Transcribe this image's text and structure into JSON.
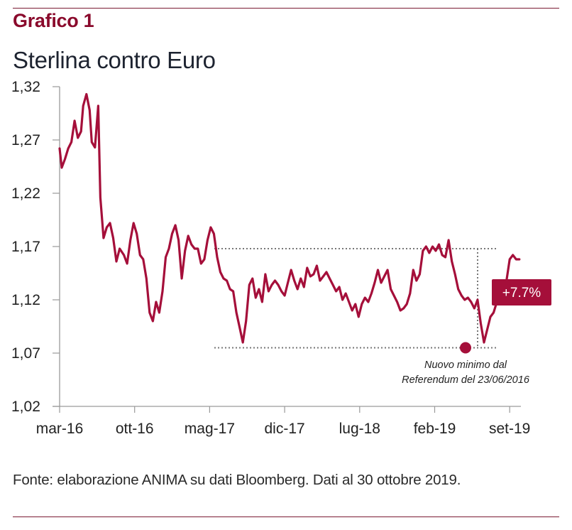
{
  "header": {
    "chart_label": "Grafico 1",
    "title": "Sterlina contro Euro"
  },
  "footer": {
    "source": "Fonte: elaborazione ANIMA su dati Bloomberg. Dati al 30 ottobre 2019."
  },
  "colors": {
    "accent": "#a50f3a",
    "label": "#8a0a2c",
    "rule": "#7a1a33",
    "axis": "#9a9a9a",
    "guide": "#777777"
  },
  "chart_data": {
    "type": "line",
    "title": "Sterlina contro Euro",
    "xlabel": "",
    "ylabel": "",
    "ylim": [
      1.02,
      1.32
    ],
    "yticks": [
      "1,32",
      "1,27",
      "1,22",
      "1,17",
      "1,12",
      "1,07",
      "1,02"
    ],
    "ytick_values": [
      1.32,
      1.27,
      1.22,
      1.17,
      1.12,
      1.07,
      1.02
    ],
    "xticks": [
      "mar-16",
      "ott-16",
      "mag-17",
      "dic-17",
      "lug-18",
      "feb-19",
      "set-19"
    ],
    "xtick_months": [
      0,
      7,
      14,
      21,
      28,
      35,
      42
    ],
    "xlim_months": [
      0,
      43
    ],
    "grid": false,
    "legend": "none",
    "series": [
      {
        "name": "GBP/EUR",
        "x_months": [
          0,
          0.2,
          0.5,
          0.8,
          1.1,
          1.4,
          1.7,
          2.0,
          2.2,
          2.5,
          2.8,
          3.0,
          3.3,
          3.6,
          3.8,
          4.1,
          4.4,
          4.7,
          5.0,
          5.3,
          5.6,
          6.0,
          6.3,
          6.6,
          6.9,
          7.2,
          7.5,
          7.8,
          8.1,
          8.4,
          8.7,
          9.0,
          9.3,
          9.6,
          9.9,
          10.2,
          10.5,
          10.8,
          11.1,
          11.4,
          11.7,
          12.0,
          12.3,
          12.6,
          12.9,
          13.2,
          13.5,
          13.8,
          14.1,
          14.4,
          14.7,
          15.0,
          15.3,
          15.6,
          15.9,
          16.2,
          16.5,
          16.8,
          17.1,
          17.4,
          17.7,
          18.0,
          18.3,
          18.6,
          18.9,
          19.2,
          19.5,
          19.8,
          20.1,
          20.4,
          20.7,
          21.0,
          21.3,
          21.6,
          21.9,
          22.2,
          22.5,
          22.8,
          23.1,
          23.4,
          23.7,
          24.0,
          24.3,
          24.6,
          24.9,
          25.2,
          25.5,
          25.8,
          26.1,
          26.4,
          26.7,
          27.0,
          27.3,
          27.6,
          27.9,
          28.2,
          28.5,
          28.8,
          29.1,
          29.4,
          29.7,
          30.0,
          30.3,
          30.6,
          30.9,
          31.2,
          31.5,
          31.8,
          32.1,
          32.4,
          32.7,
          33.0,
          33.3,
          33.6,
          33.9,
          34.2,
          34.5,
          34.8,
          35.1,
          35.4,
          35.7,
          36.0,
          36.3,
          36.6,
          36.9,
          37.2,
          37.5,
          37.8,
          38.1,
          38.4,
          38.7,
          39.0,
          39.3,
          39.6,
          39.9,
          40.2,
          40.5,
          40.8,
          41.1,
          41.4,
          41.7,
          42.0,
          42.3,
          42.6,
          42.9
        ],
        "values": [
          1.262,
          1.244,
          1.252,
          1.262,
          1.268,
          1.288,
          1.272,
          1.278,
          1.302,
          1.313,
          1.298,
          1.268,
          1.263,
          1.302,
          1.216,
          1.178,
          1.188,
          1.192,
          1.178,
          1.156,
          1.168,
          1.162,
          1.154,
          1.176,
          1.192,
          1.182,
          1.162,
          1.158,
          1.14,
          1.108,
          1.1,
          1.118,
          1.108,
          1.128,
          1.16,
          1.168,
          1.182,
          1.19,
          1.176,
          1.14,
          1.166,
          1.18,
          1.172,
          1.168,
          1.168,
          1.154,
          1.158,
          1.176,
          1.188,
          1.182,
          1.16,
          1.146,
          1.14,
          1.138,
          1.13,
          1.128,
          1.108,
          1.094,
          1.08,
          1.1,
          1.134,
          1.14,
          1.122,
          1.13,
          1.118,
          1.144,
          1.128,
          1.134,
          1.138,
          1.134,
          1.128,
          1.124,
          1.136,
          1.148,
          1.138,
          1.13,
          1.14,
          1.132,
          1.15,
          1.142,
          1.144,
          1.152,
          1.138,
          1.142,
          1.146,
          1.14,
          1.134,
          1.128,
          1.132,
          1.12,
          1.126,
          1.118,
          1.11,
          1.116,
          1.104,
          1.116,
          1.122,
          1.118,
          1.126,
          1.136,
          1.148,
          1.136,
          1.142,
          1.148,
          1.13,
          1.124,
          1.118,
          1.11,
          1.112,
          1.116,
          1.126,
          1.148,
          1.138,
          1.144,
          1.166,
          1.17,
          1.164,
          1.17,
          1.166,
          1.172,
          1.162,
          1.16,
          1.176,
          1.156,
          1.144,
          1.13,
          1.124,
          1.12,
          1.122,
          1.118,
          1.112,
          1.12,
          1.098,
          1.08,
          1.092,
          1.104,
          1.108,
          1.118,
          1.122,
          1.13,
          1.138,
          1.158,
          1.162,
          1.158,
          1.158
        ]
      }
    ],
    "reference_lines": {
      "upper_level": 1.168,
      "lower_level": 1.075
    },
    "annotations": {
      "badge": "+7.7%",
      "note_line1": "Nuovo minimo dal",
      "note_line2": "Referendum del 23/06/2016"
    }
  }
}
